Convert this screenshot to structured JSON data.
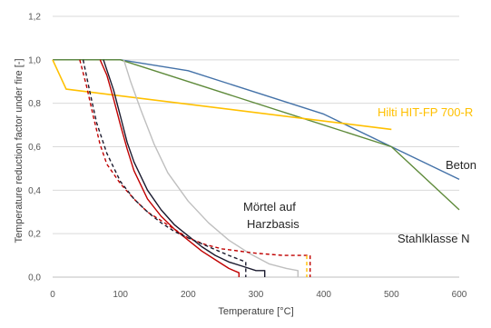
{
  "chart_data": {
    "type": "line",
    "xlabel": "Temperature [°C]",
    "ylabel": "Temperature reduction factor under fire [-]",
    "xlim": [
      0,
      600
    ],
    "ylim": [
      0,
      1.2
    ],
    "x_ticks": [
      "0",
      "100",
      "200",
      "300",
      "400",
      "500",
      "600"
    ],
    "y_ticks": [
      "0,0",
      "0,2",
      "0,4",
      "0,6",
      "0,8",
      "1,0",
      "1,2"
    ],
    "x_tick_values": [
      0,
      100,
      200,
      300,
      400,
      500,
      600
    ],
    "y_tick_values": [
      0,
      0.2,
      0.4,
      0.6,
      0.8,
      1.0,
      1.2
    ],
    "grid": "horizontal",
    "annotations": {
      "hilti": "Hilti HIT-FP 700-R",
      "beton": "Beton",
      "stahl": "Stahlklasse N",
      "moertel_1": "Mörtel auf",
      "moertel_2": "Harzbasis"
    },
    "series": [
      {
        "color": "#4472A8",
        "dash": false,
        "x": [
          0,
          100,
          200,
          300,
          400,
          500,
          600
        ],
        "y": [
          1.0,
          1.0,
          0.95,
          0.85,
          0.75,
          0.6,
          0.45
        ]
      },
      {
        "color": "#5E8A3A",
        "dash": false,
        "x": [
          0,
          100,
          500,
          600
        ],
        "y": [
          1.0,
          1.0,
          0.6,
          0.31
        ]
      },
      {
        "color": "#FFC000",
        "dash": false,
        "x": [
          0,
          20,
          500
        ],
        "y": [
          1.0,
          0.865,
          0.68
        ]
      },
      {
        "color": "#C00000",
        "dash": false,
        "x": [
          70,
          80,
          90,
          100,
          110,
          120,
          140,
          160,
          180,
          200,
          220,
          240,
          260,
          275,
          275
        ],
        "y": [
          1.0,
          0.93,
          0.82,
          0.7,
          0.59,
          0.49,
          0.36,
          0.28,
          0.22,
          0.17,
          0.12,
          0.08,
          0.04,
          0.02,
          0.0
        ]
      },
      {
        "color": "#1A1A2E",
        "dash": false,
        "x": [
          75,
          90,
          100,
          110,
          120,
          140,
          160,
          180,
          200,
          220,
          240,
          260,
          280,
          300,
          313,
          313
        ],
        "y": [
          1.0,
          0.86,
          0.74,
          0.62,
          0.53,
          0.4,
          0.31,
          0.24,
          0.19,
          0.14,
          0.1,
          0.07,
          0.05,
          0.03,
          0.03,
          0.0
        ]
      },
      {
        "color": "#BFBFBF",
        "dash": false,
        "x": [
          105,
          115,
          130,
          150,
          170,
          200,
          230,
          260,
          290,
          320,
          345,
          362,
          362
        ],
        "y": [
          1.0,
          0.9,
          0.77,
          0.61,
          0.48,
          0.35,
          0.25,
          0.17,
          0.11,
          0.06,
          0.04,
          0.03,
          0.0
        ]
      },
      {
        "color": "#C00000",
        "dash": true,
        "x": [
          40,
          50,
          60,
          70,
          80,
          100,
          120,
          140,
          160,
          180,
          200,
          225,
          250,
          300,
          340,
          380,
          380
        ],
        "y": [
          1.0,
          0.88,
          0.74,
          0.61,
          0.52,
          0.43,
          0.36,
          0.3,
          0.26,
          0.22,
          0.18,
          0.15,
          0.13,
          0.11,
          0.1,
          0.1,
          0.0
        ]
      },
      {
        "color": "#1A1A2E",
        "dash": true,
        "x": [
          45,
          55,
          65,
          80,
          100,
          120,
          140,
          160,
          180,
          200,
          230,
          260,
          285,
          285
        ],
        "y": [
          1.0,
          0.85,
          0.71,
          0.57,
          0.44,
          0.36,
          0.3,
          0.25,
          0.21,
          0.18,
          0.14,
          0.1,
          0.07,
          0.0
        ]
      },
      {
        "color": "#FFC000",
        "dash": true,
        "x": [
          375,
          375
        ],
        "y": [
          0.1,
          0.0
        ]
      }
    ]
  }
}
